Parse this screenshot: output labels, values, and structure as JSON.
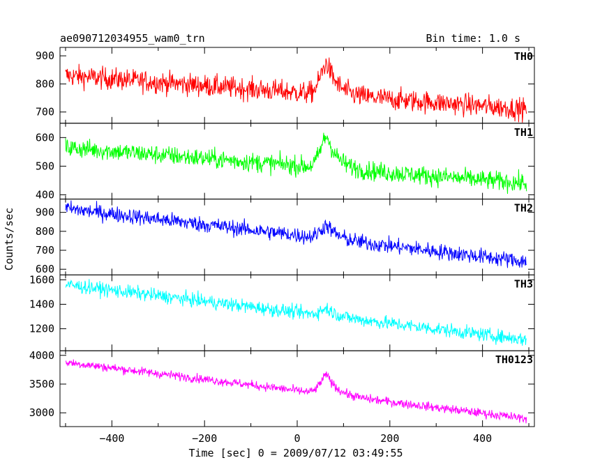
{
  "chart_data": {
    "type": "line",
    "title": "ae090712034955_wam0_trn",
    "bin_time_label": "Bin time: 1.0 s",
    "xlabel": "Time [sec] 0 = 2009/07/12 03:49:55",
    "ylabel": "Counts/sec",
    "xlim": [
      -512,
      512
    ],
    "x_ticks": [
      -400,
      -200,
      0,
      200,
      400
    ],
    "x_tick_labels": [
      "−400",
      "−200",
      "0",
      "200",
      "400"
    ],
    "x_start": -500,
    "x_end": 495,
    "burst_time": 65,
    "panels": [
      {
        "name": "TH0",
        "color": "#ff0000",
        "ylim": [
          660,
          930
        ],
        "y_ticks": [
          700,
          800,
          900
        ],
        "y_tick_labels": [
          "700",
          "800",
          "900"
        ],
        "baseline_start": 830,
        "baseline_end": 710,
        "noise": 28,
        "burst_peak": 110
      },
      {
        "name": "TH1",
        "color": "#00ff00",
        "ylim": [
          385,
          650
        ],
        "y_ticks": [
          400,
          500,
          600
        ],
        "y_tick_labels": [
          "400",
          "500",
          "600"
        ],
        "baseline_start": 565,
        "baseline_end": 440,
        "noise": 24,
        "burst_peak": 110
      },
      {
        "name": "TH2",
        "color": "#0000ff",
        "ylim": [
          570,
          970
        ],
        "y_ticks": [
          600,
          700,
          800,
          900
        ],
        "y_tick_labels": [
          "600",
          "700",
          "800",
          "900"
        ],
        "baseline_start": 920,
        "baseline_end": 640,
        "noise": 30,
        "burst_peak": 70
      },
      {
        "name": "TH3",
        "color": "#00ffff",
        "ylim": [
          1020,
          1640
        ],
        "y_ticks": [
          1200,
          1400,
          1600
        ],
        "y_tick_labels": [
          "1200",
          "1400",
          "1600"
        ],
        "baseline_start": 1560,
        "baseline_end": 1110,
        "noise": 40,
        "burst_peak": 60
      },
      {
        "name": "TH0123",
        "color": "#ff00ff",
        "ylim": [
          2760,
          4080
        ],
        "y_ticks": [
          3000,
          3500,
          4000
        ],
        "y_tick_labels": [
          "3000",
          "3500",
          "4000"
        ],
        "baseline_start": 3880,
        "baseline_end": 2900,
        "noise": 55,
        "burst_peak": 330
      }
    ]
  }
}
